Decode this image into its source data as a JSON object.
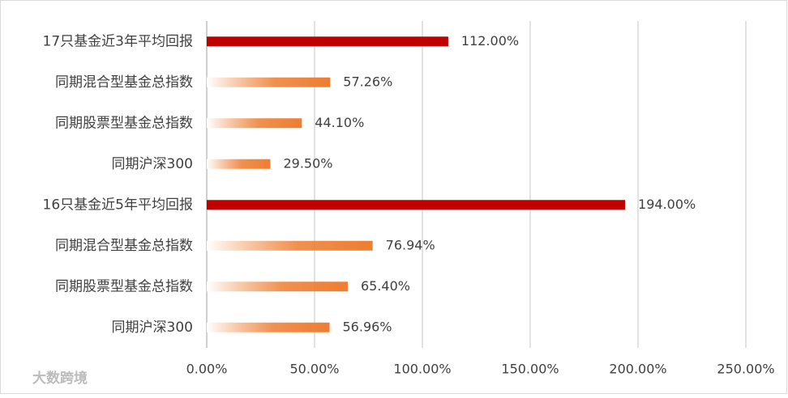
{
  "chart_data": {
    "type": "barh",
    "categories": [
      "17只基金近3年平均回报",
      "同期混合型基金总指数",
      "同期股票型基金总指数",
      "同期沪深300",
      "16只基金近5年平均回报",
      "同期混合型基金总指数",
      "同期股票型基金总指数",
      "同期沪深300"
    ],
    "values": [
      112,
      57.26,
      44.1,
      29.5,
      194,
      76.94,
      65.4,
      56.96
    ],
    "value_labels": [
      "112.00%",
      "57.26%",
      "44.10%",
      "29.50%",
      "194.00%",
      "76.94%",
      "65.40%",
      "56.96%"
    ],
    "colors": [
      "#c00000",
      "#ed7d31",
      "#ed7d31",
      "#ed7d31",
      "#c00000",
      "#ed7d31",
      "#ed7d31",
      "#ed7d31"
    ],
    "gradient": [
      false,
      true,
      true,
      true,
      false,
      true,
      true,
      true
    ],
    "xlim": [
      0,
      250
    ],
    "xticks": [
      {
        "value": 0,
        "label": "0.00%"
      },
      {
        "value": 50,
        "label": "50.00%"
      },
      {
        "value": 100,
        "label": "100.00%"
      },
      {
        "value": 150,
        "label": "150.00%"
      },
      {
        "value": 200,
        "label": "200.00%"
      },
      {
        "value": 250,
        "label": "250.00%"
      }
    ],
    "grid": true,
    "watermark": "大数跨境"
  }
}
